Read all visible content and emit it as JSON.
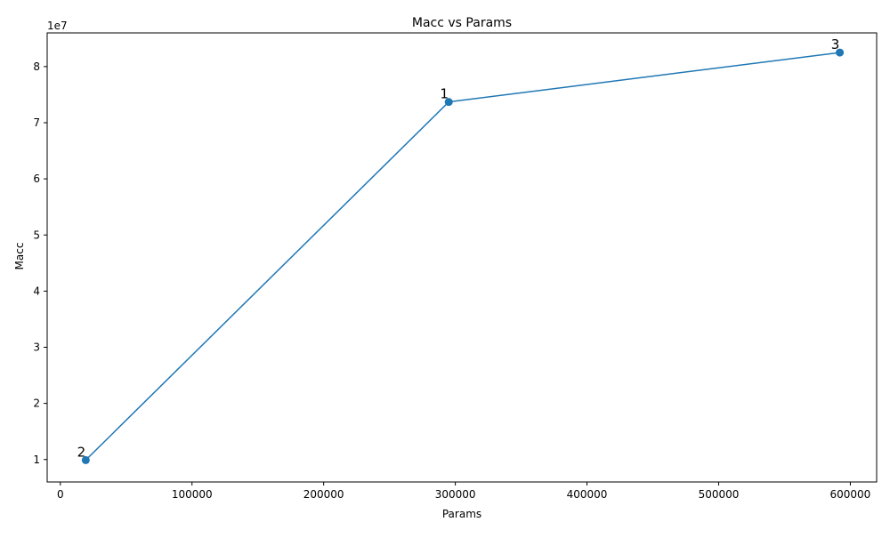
{
  "chart_data": {
    "type": "line",
    "title": "Macc vs Params",
    "xlabel": "Params",
    "ylabel": "Macc",
    "y_offset_label": "1e7",
    "xlim": [
      -10000,
      620000
    ],
    "ylim": [
      6000000,
      86000000
    ],
    "x_ticks": [
      0,
      100000,
      200000,
      300000,
      400000,
      500000,
      600000
    ],
    "x_tick_labels": [
      "0",
      "100000",
      "200000",
      "300000",
      "400000",
      "500000",
      "600000"
    ],
    "y_ticks": [
      10000000,
      20000000,
      30000000,
      40000000,
      50000000,
      60000000,
      70000000,
      80000000
    ],
    "y_tick_labels": [
      "1",
      "2",
      "3",
      "4",
      "5",
      "6",
      "7",
      "8"
    ],
    "grid": false,
    "series": [
      {
        "color": "#1f77b4",
        "marker": "circle",
        "points": [
          {
            "x": 19300,
            "y": 9900000,
            "label": "2"
          },
          {
            "x": 295000,
            "y": 73700000,
            "label": "1"
          },
          {
            "x": 592000,
            "y": 82500000,
            "label": "3"
          }
        ]
      }
    ]
  }
}
